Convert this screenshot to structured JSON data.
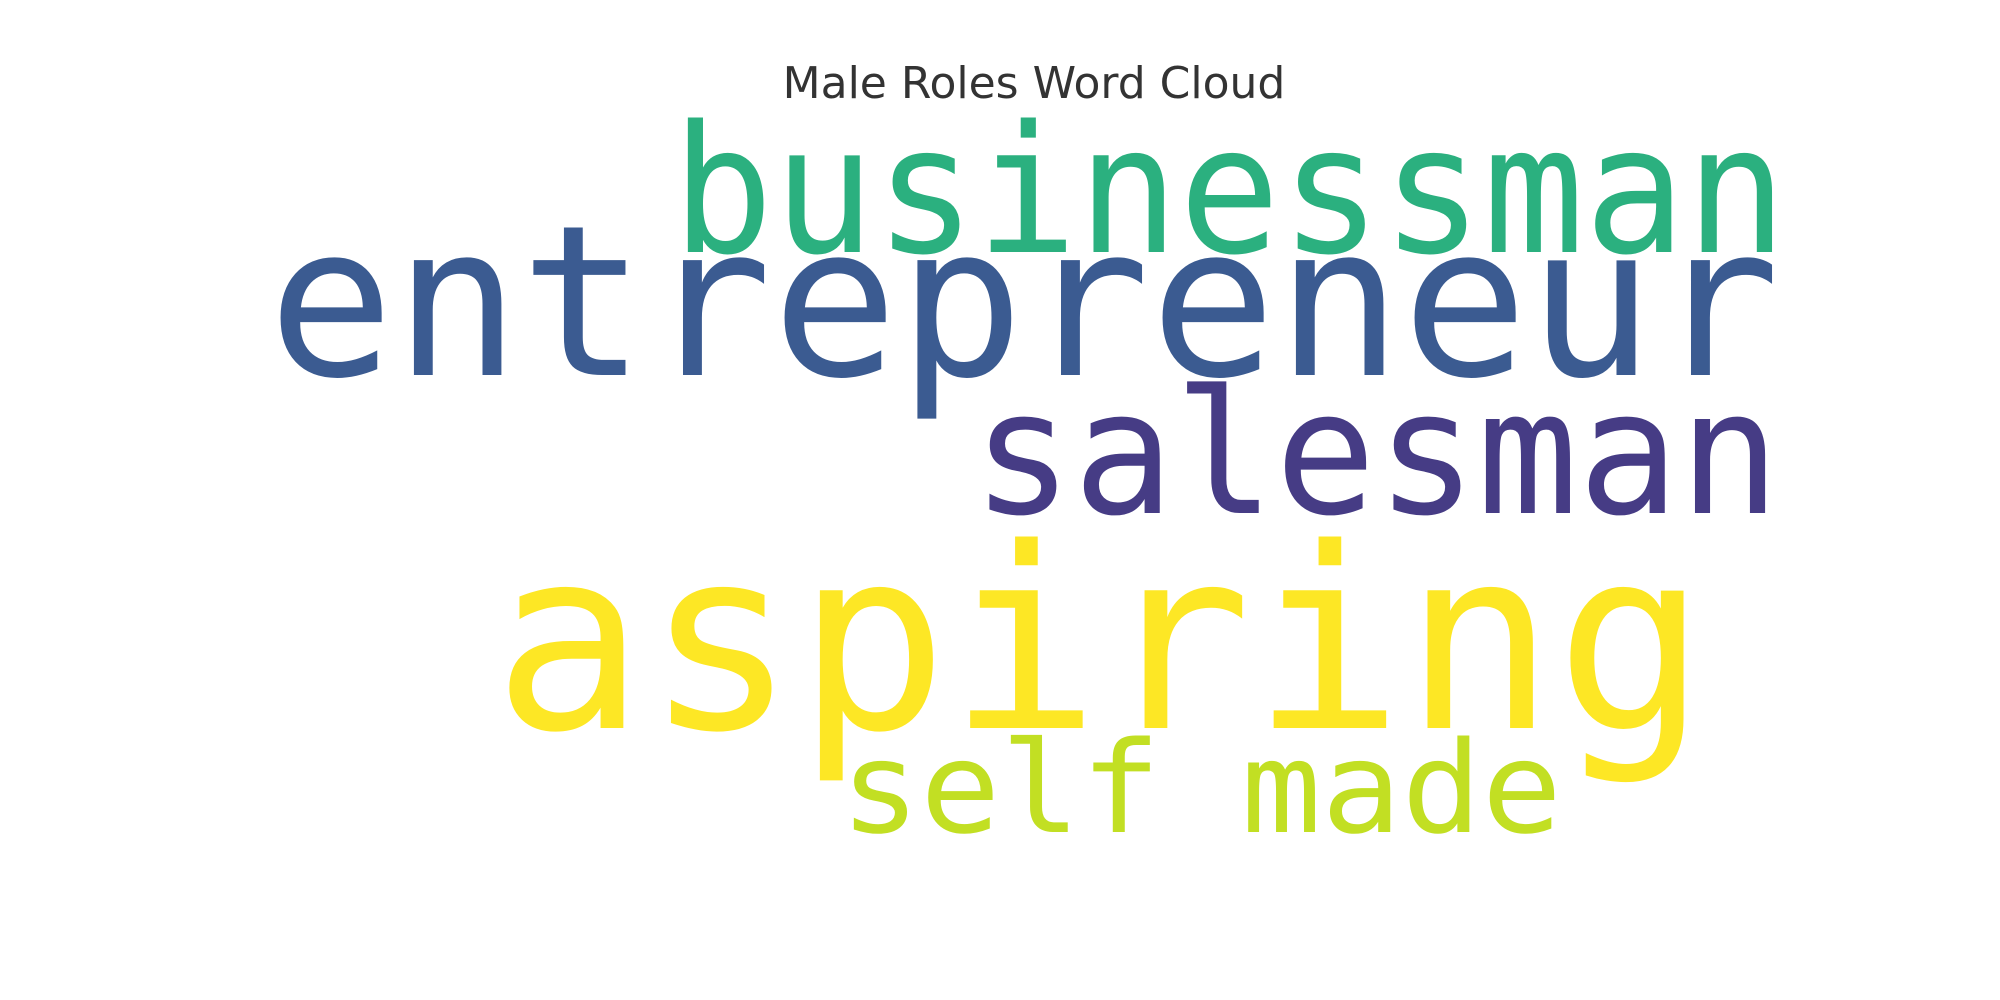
{
  "title": "Male Roles Word Cloud",
  "words": [
    {
      "text": "businessman",
      "color": "#2bb07f"
    },
    {
      "text": "entrepreneur",
      "color": "#3b5b91"
    },
    {
      "text": "salesman",
      "color": "#463c85"
    },
    {
      "text": "aspiring",
      "color": "#fde725"
    },
    {
      "text": "self made",
      "color": "#c2df23"
    }
  ]
}
